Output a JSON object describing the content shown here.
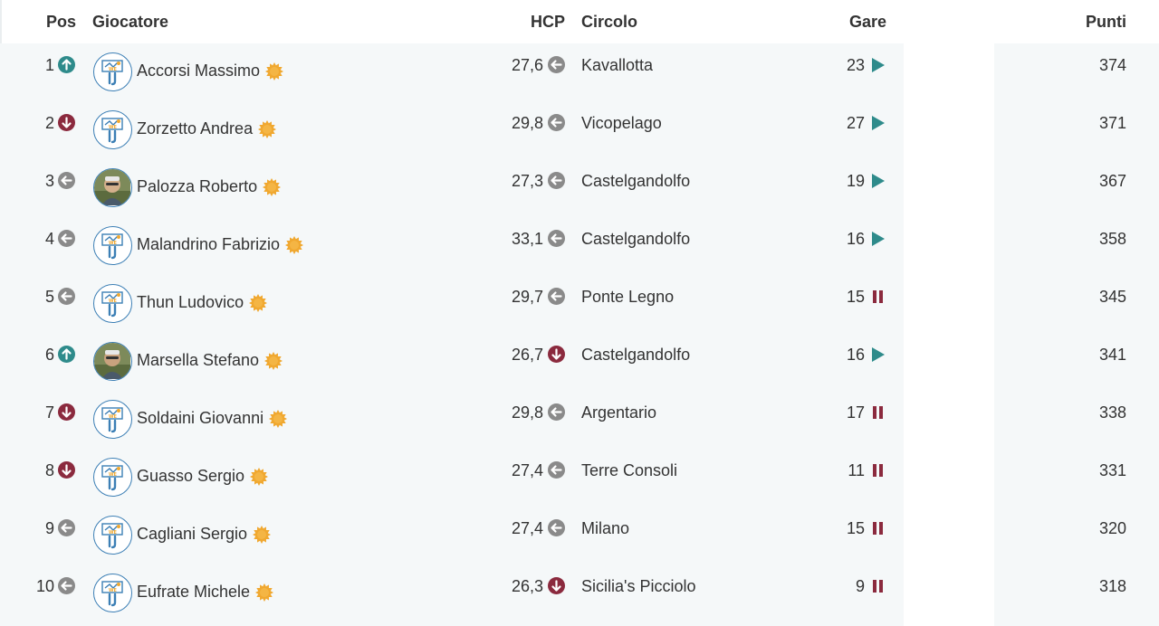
{
  "header": {
    "pos": "Pos",
    "player": "Giocatore",
    "hcp": "HCP",
    "club": "Circolo",
    "races": "Gare",
    "points": "Punti"
  },
  "colors": {
    "up": "#2e8b8b",
    "down": "#8b2a3e",
    "same": "#8a8a8a",
    "play": "#2e8b8b",
    "pause": "#8b2a3e",
    "star": "#f0a830"
  },
  "rows": [
    {
      "pos": "1",
      "trend": "up",
      "avatar": "logo-avatar",
      "name": "Accorsi Massimo",
      "hcp": "27,6",
      "hcp_trend": "same",
      "club": "Kavallotta",
      "races": "23",
      "status": "play",
      "points": "374"
    },
    {
      "pos": "2",
      "trend": "down",
      "avatar": "logo-avatar",
      "name": "Zorzetto Andrea",
      "hcp": "29,8",
      "hcp_trend": "same",
      "club": "Vicopelago",
      "races": "27",
      "status": "play",
      "points": "371"
    },
    {
      "pos": "3",
      "trend": "same",
      "avatar": "photo-avatar",
      "name": "Palozza Roberto",
      "hcp": "27,3",
      "hcp_trend": "same",
      "club": "Castelgandolfo",
      "races": "19",
      "status": "play",
      "points": "367"
    },
    {
      "pos": "4",
      "trend": "same",
      "avatar": "logo-avatar",
      "name": "Malandrino Fabrizio",
      "hcp": "33,1",
      "hcp_trend": "same",
      "club": "Castelgandolfo",
      "races": "16",
      "status": "play",
      "points": "358"
    },
    {
      "pos": "5",
      "trend": "same",
      "avatar": "logo-avatar",
      "name": "Thun Ludovico",
      "hcp": "29,7",
      "hcp_trend": "same",
      "club": "Ponte Legno",
      "races": "15",
      "status": "pause",
      "points": "345"
    },
    {
      "pos": "6",
      "trend": "up",
      "avatar": "photo-avatar",
      "name": "Marsella Stefano",
      "hcp": "26,7",
      "hcp_trend": "down",
      "club": "Castelgandolfo",
      "races": "16",
      "status": "play",
      "points": "341"
    },
    {
      "pos": "7",
      "trend": "down",
      "avatar": "logo-avatar",
      "name": "Soldaini Giovanni",
      "hcp": "29,8",
      "hcp_trend": "same",
      "club": "Argentario",
      "races": "17",
      "status": "pause",
      "points": "338"
    },
    {
      "pos": "8",
      "trend": "down",
      "avatar": "logo-avatar",
      "name": "Guasso Sergio",
      "hcp": "27,4",
      "hcp_trend": "same",
      "club": "Terre Consoli",
      "races": "11",
      "status": "pause",
      "points": "331"
    },
    {
      "pos": "9",
      "trend": "same",
      "avatar": "logo-avatar",
      "name": "Cagliani Sergio",
      "hcp": "27,4",
      "hcp_trend": "same",
      "club": "Milano",
      "races": "15",
      "status": "pause",
      "points": "320"
    },
    {
      "pos": "10",
      "trend": "same",
      "avatar": "logo-avatar",
      "name": "Eufrate Michele",
      "hcp": "26,3",
      "hcp_trend": "down",
      "club": "Sicilia's Picciolo",
      "races": "9",
      "status": "pause",
      "points": "318"
    }
  ]
}
